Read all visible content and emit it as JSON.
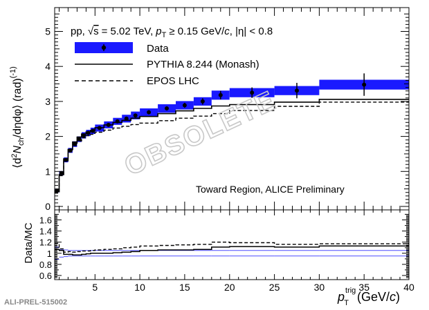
{
  "figure_id": "ALI-PREL-515002",
  "watermark": "OBSOLETE",
  "chart_data": [
    {
      "type": "step",
      "panel": "upper",
      "title": "",
      "system": "pp,",
      "sqrt_s": "s",
      "energy_text": "= 5.02 TeV,",
      "pt_p": "p",
      "pt_sub": "T",
      "pt_cut": "≥ 0.15 GeV/",
      "pt_c": "c",
      "eta_cut": ", |η| < 0.8",
      "region_label": "Toward Region, ALICE Preliminary",
      "ylabel_parts": [
        "⟨d",
        "2",
        "N",
        "ch",
        "/dηdφ⟩ (rad)",
        "(-1)"
      ],
      "ylim": [
        0,
        5.5
      ],
      "yticks": [
        0,
        1,
        2,
        3,
        4,
        5
      ],
      "legend": [
        {
          "key": "data",
          "label": "Data"
        },
        {
          "key": "pythia",
          "label": "PYTHIA 8.244 (Monash)"
        },
        {
          "key": "epos",
          "label": "EPOS LHC"
        }
      ],
      "colors": {
        "data_band": "#1a1aff",
        "pythia": "#000000",
        "epos": "#000000"
      },
      "bin_edges": [
        0.5,
        1.0,
        1.5,
        2.0,
        2.5,
        3.0,
        3.5,
        4.0,
        4.5,
        5.0,
        6.0,
        7.0,
        8.0,
        9.0,
        10.0,
        12.0,
        14.0,
        16.0,
        18.0,
        20.0,
        25.0,
        30.0,
        40.0
      ],
      "data_values": [
        0.45,
        0.95,
        1.33,
        1.6,
        1.78,
        1.92,
        2.03,
        2.1,
        2.16,
        2.24,
        2.33,
        2.43,
        2.51,
        2.6,
        2.69,
        2.8,
        2.89,
        3.0,
        3.18,
        3.25,
        3.31,
        3.48
      ],
      "data_stat_err": [
        0.06,
        0.04,
        0.04,
        0.04,
        0.04,
        0.04,
        0.04,
        0.04,
        0.04,
        0.04,
        0.04,
        0.05,
        0.05,
        0.05,
        0.06,
        0.06,
        0.07,
        0.09,
        0.12,
        0.15,
        0.22,
        0.32
      ],
      "data_sys_err": [
        0.05,
        0.06,
        0.07,
        0.07,
        0.08,
        0.08,
        0.09,
        0.09,
        0.09,
        0.1,
        0.1,
        0.1,
        0.11,
        0.11,
        0.11,
        0.12,
        0.12,
        0.12,
        0.13,
        0.13,
        0.13,
        0.14
      ],
      "pythia_values": [
        0.42,
        0.91,
        1.36,
        1.63,
        1.84,
        1.98,
        2.07,
        2.13,
        2.17,
        2.25,
        2.33,
        2.4,
        2.46,
        2.52,
        2.57,
        2.65,
        2.73,
        2.8,
        2.87,
        2.91,
        2.98,
        3.06
      ],
      "epos_values": [
        0.38,
        0.88,
        1.3,
        1.56,
        1.74,
        1.87,
        1.96,
        2.02,
        2.06,
        2.12,
        2.18,
        2.24,
        2.29,
        2.34,
        2.38,
        2.45,
        2.52,
        2.58,
        2.65,
        2.74,
        2.86,
        2.98
      ]
    },
    {
      "type": "step",
      "panel": "lower",
      "ylabel": "Data/MC",
      "xlabel_p": "p",
      "xlabel_sup": "trig",
      "xlabel_sub": "T",
      "xlabel_unit": "(GeV/",
      "xlabel_c": "c",
      "xlabel_close": ")",
      "xlim": [
        0.5,
        40
      ],
      "xticks": [
        5,
        10,
        15,
        20,
        25,
        30,
        35,
        40
      ],
      "ylim": [
        0.55,
        1.72
      ],
      "yticks": [
        0.6,
        0.8,
        1.0,
        1.2,
        1.4,
        1.6
      ],
      "ytick_labels": [
        "0.6",
        "0.8",
        "1",
        "1.2",
        "1.4",
        "1.6"
      ],
      "band_color": "#4d4dff",
      "unity_band_rel_err": [
        0.11,
        0.07,
        0.06,
        0.05,
        0.05,
        0.05,
        0.05,
        0.05,
        0.05,
        0.05,
        0.05,
        0.05,
        0.05,
        0.05,
        0.05,
        0.05,
        0.05,
        0.05,
        0.05,
        0.05,
        0.05,
        0.05
      ],
      "ratio_pythia": [
        1.07,
        1.05,
        0.98,
        0.98,
        0.97,
        0.97,
        0.98,
        0.99,
        1.0,
        1.0,
        1.0,
        1.01,
        1.02,
        1.03,
        1.05,
        1.06,
        1.06,
        1.07,
        1.11,
        1.12,
        1.11,
        1.13
      ],
      "ratio_epos": [
        1.18,
        1.08,
        1.02,
        1.03,
        1.02,
        1.03,
        1.04,
        1.04,
        1.05,
        1.06,
        1.07,
        1.08,
        1.1,
        1.11,
        1.13,
        1.14,
        1.15,
        1.16,
        1.2,
        1.19,
        1.16,
        1.17
      ]
    }
  ]
}
